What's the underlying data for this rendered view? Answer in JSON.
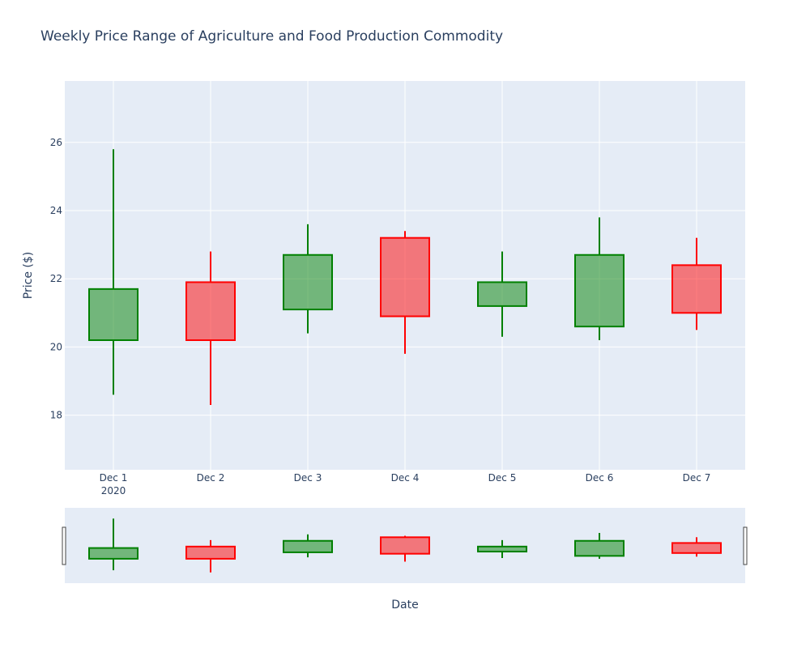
{
  "chart_data": {
    "type": "candlestick",
    "title": "Weekly Price Range of Agriculture and Food Production Commodity",
    "xlabel": "Date",
    "ylabel": "Price ($)",
    "year_label": "2020",
    "ylim": [
      16.4,
      27.8
    ],
    "yticks": [
      18,
      20,
      22,
      24,
      26
    ],
    "grid": true,
    "range_slider": true,
    "colors": {
      "increasing": "#008000",
      "decreasing": "#ff0000",
      "plot_bg": "#e5ecf6",
      "grid": "#ffffff",
      "text": "#2a3f5f"
    },
    "candles": [
      {
        "label": "Dec 1",
        "open": 20.2,
        "high": 25.8,
        "low": 18.6,
        "close": 21.7
      },
      {
        "label": "Dec 2",
        "open": 21.9,
        "high": 22.8,
        "low": 18.3,
        "close": 20.2
      },
      {
        "label": "Dec 3",
        "open": 21.1,
        "high": 23.6,
        "low": 20.4,
        "close": 22.7
      },
      {
        "label": "Dec 4",
        "open": 23.2,
        "high": 23.4,
        "low": 19.8,
        "close": 20.9
      },
      {
        "label": "Dec 5",
        "open": 21.2,
        "high": 22.8,
        "low": 20.3,
        "close": 21.9
      },
      {
        "label": "Dec 6",
        "open": 20.6,
        "high": 23.8,
        "low": 20.2,
        "close": 22.7
      },
      {
        "label": "Dec 7",
        "open": 22.4,
        "high": 23.2,
        "low": 20.5,
        "close": 21.0
      }
    ]
  }
}
